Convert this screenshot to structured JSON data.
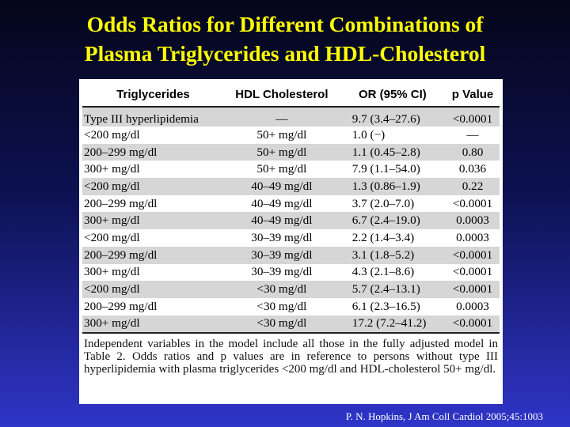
{
  "title": {
    "line1": "Odds Ratios for Different Combinations of",
    "line2": "Plasma Triglycerides and HDL-Cholesterol"
  },
  "table": {
    "headers": [
      "Triglycerides",
      "HDL Cholesterol",
      "OR (95% CI)",
      "p Value"
    ],
    "rows": [
      [
        "Type III hyperlipidemia",
        "—",
        "9.7 (3.4–27.6)",
        "<0.0001"
      ],
      [
        "<200 mg/dl",
        "50+ mg/dl",
        "1.0 (−)",
        "—"
      ],
      [
        "200–299 mg/dl",
        "50+ mg/dl",
        "1.1 (0.45–2.8)",
        "0.80"
      ],
      [
        "300+ mg/dl",
        "50+ mg/dl",
        "7.9 (1.1–54.0)",
        "0.036"
      ],
      [
        "<200 mg/dl",
        "40–49 mg/dl",
        "1.3 (0.86–1.9)",
        "0.22"
      ],
      [
        "200–299 mg/dl",
        "40–49 mg/dl",
        "3.7 (2.0–7.0)",
        "<0.0001"
      ],
      [
        "300+ mg/dl",
        "40–49 mg/dl",
        "6.7 (2.4–19.0)",
        "0.0003"
      ],
      [
        "<200 mg/dl",
        "30–39 mg/dl",
        "2.2 (1.4–3.4)",
        "0.0003"
      ],
      [
        "200–299 mg/dl",
        "30–39 mg/dl",
        "3.1 (1.8–5.2)",
        "<0.0001"
      ],
      [
        "300+ mg/dl",
        "30–39 mg/dl",
        "4.3 (2.1–8.6)",
        "<0.0001"
      ],
      [
        "<200 mg/dl",
        "<30 mg/dl",
        "5.7 (2.4–13.1)",
        "<0.0001"
      ],
      [
        "200–299 mg/dl",
        "<30 mg/dl",
        "6.1 (2.3–16.5)",
        "0.0003"
      ],
      [
        "300+ mg/dl",
        "<30 mg/dl",
        "17.2 (7.2–41.2)",
        "<0.0001"
      ]
    ],
    "footnote": "Independent variables in the model include all those in the fully adjusted model in Table 2. Odds ratios and p values are in reference to persons without type III hyperlipidemia with plasma triglycerides <200 mg/dl and HDL-cholesterol 50+ mg/dl."
  },
  "citation": "P. N. Hopkins, J Am Coll Cardiol 2005;45:1003",
  "colors": {
    "background_top": "#05061a",
    "background_bottom": "#2f35c8",
    "title": "#ffff00",
    "zebra": "#d6d6d6"
  }
}
